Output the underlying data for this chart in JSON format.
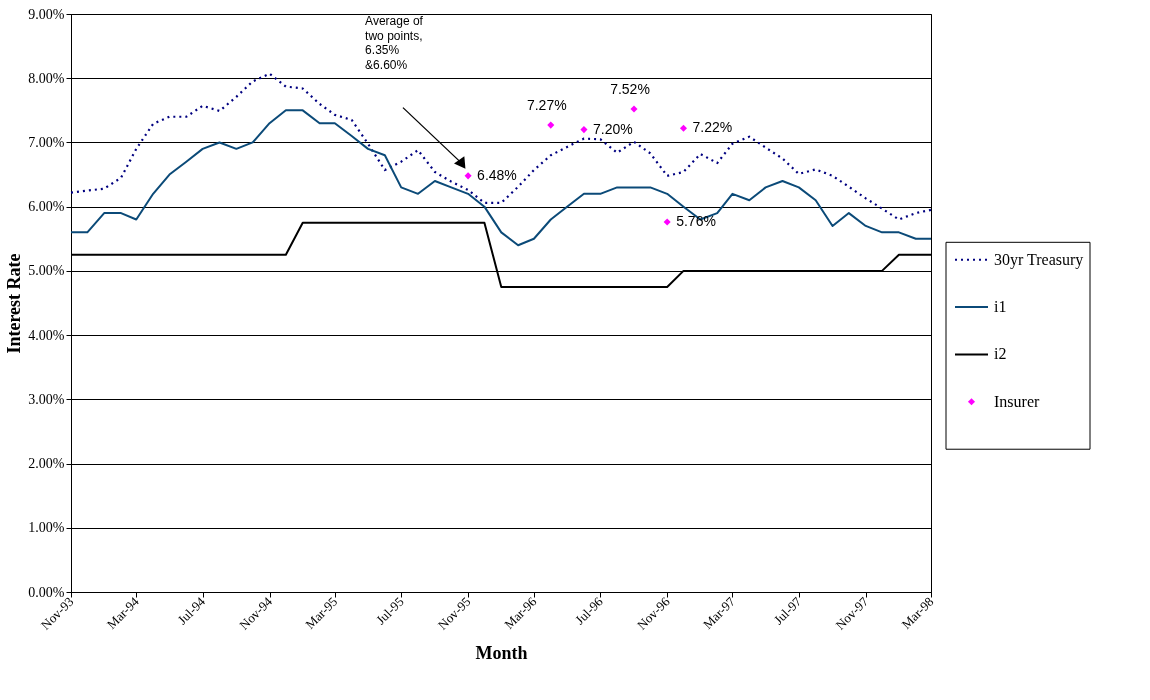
{
  "chart_data": {
    "type": "line",
    "x": [
      "1993-11",
      "1993-12",
      "1994-01",
      "1994-02",
      "1994-03",
      "1994-04",
      "1994-05",
      "1994-06",
      "1994-07",
      "1994-08",
      "1994-09",
      "1994-10",
      "1994-11",
      "1994-12",
      "1995-01",
      "1995-02",
      "1995-03",
      "1995-04",
      "1995-05",
      "1995-06",
      "1995-07",
      "1995-08",
      "1995-09",
      "1995-10",
      "1995-11",
      "1995-12",
      "1996-01",
      "1996-02",
      "1996-03",
      "1996-04",
      "1996-05",
      "1996-06",
      "1996-07",
      "1996-08",
      "1996-09",
      "1996-10",
      "1996-11",
      "1996-12",
      "1997-01",
      "1997-02",
      "1997-03",
      "1997-04",
      "1997-05",
      "1997-06",
      "1997-07",
      "1997-08",
      "1997-09",
      "1997-10",
      "1997-11",
      "1997-12",
      "1998-01",
      "1998-02",
      "1998-03"
    ],
    "series": [
      {
        "name": "30yr Treasury",
        "line_style": "dotted",
        "color": "#000080",
        "values": [
          6.22,
          6.25,
          6.28,
          6.45,
          6.9,
          7.29,
          7.4,
          7.4,
          7.57,
          7.49,
          7.71,
          7.95,
          8.07,
          7.87,
          7.84,
          7.6,
          7.43,
          7.35,
          6.98,
          6.57,
          6.7,
          6.88,
          6.54,
          6.39,
          6.26,
          6.06,
          6.06,
          6.31,
          6.57,
          6.8,
          6.93,
          7.06,
          7.05,
          6.84,
          7.01,
          6.83,
          6.48,
          6.54,
          6.82,
          6.68,
          6.98,
          7.09,
          6.92,
          6.75,
          6.51,
          6.58,
          6.48,
          6.31,
          6.13,
          5.97,
          5.8,
          5.9,
          5.95
        ]
      },
      {
        "name": "i1",
        "line_style": "solid",
        "color": "#0b4a78",
        "values": [
          5.6,
          5.6,
          5.9,
          5.9,
          5.8,
          6.2,
          6.5,
          6.7,
          6.9,
          7.0,
          6.9,
          7.0,
          7.3,
          7.5,
          7.5,
          7.3,
          7.3,
          7.1,
          6.9,
          6.8,
          6.3,
          6.2,
          6.4,
          6.3,
          6.2,
          6.0,
          5.6,
          5.4,
          5.5,
          5.8,
          6.0,
          6.2,
          6.2,
          6.3,
          6.3,
          6.3,
          6.2,
          6.0,
          5.8,
          5.9,
          6.2,
          6.1,
          6.3,
          6.4,
          6.3,
          6.1,
          5.7,
          5.9,
          5.7,
          5.6,
          5.6,
          5.5,
          5.5
        ]
      },
      {
        "name": "i2",
        "line_style": "solid",
        "color": "#000000",
        "values": [
          5.25,
          5.25,
          5.25,
          5.25,
          5.25,
          5.25,
          5.25,
          5.25,
          5.25,
          5.25,
          5.25,
          5.25,
          5.25,
          5.25,
          5.75,
          5.75,
          5.75,
          5.75,
          5.75,
          5.75,
          5.75,
          5.75,
          5.75,
          5.75,
          5.75,
          5.75,
          4.75,
          4.75,
          4.75,
          4.75,
          4.75,
          4.75,
          4.75,
          4.75,
          4.75,
          4.75,
          4.75,
          5.0,
          5.0,
          5.0,
          5.0,
          5.0,
          5.0,
          5.0,
          5.0,
          5.0,
          5.0,
          5.0,
          5.0,
          5.0,
          5.25,
          5.25,
          5.25
        ]
      },
      {
        "name": "Insurer",
        "type": "scatter",
        "marker": "diamond",
        "color": "#ff00ff",
        "x": [
          "1995-11",
          "1996-04",
          "1996-06",
          "1996-09",
          "1996-11",
          "1996-12"
        ],
        "values": [
          6.48,
          7.27,
          7.2,
          7.52,
          5.76,
          7.22
        ],
        "value_labels": [
          "6.48%",
          "7.27%",
          "7.20%",
          "7.52%",
          "5.76%",
          "7.22%"
        ]
      }
    ],
    "xlabel": "Month",
    "ylabel": "Interest Rate",
    "xlim": [
      "1993-11",
      "1998-03"
    ],
    "xticks": [
      {
        "value": "1993-11",
        "label": "Nov-93"
      },
      {
        "value": "1994-03",
        "label": "Mar-94"
      },
      {
        "value": "1994-07",
        "label": "Jul-94"
      },
      {
        "value": "1994-11",
        "label": "Nov-94"
      },
      {
        "value": "1995-03",
        "label": "Mar-95"
      },
      {
        "value": "1995-07",
        "label": "Jul-95"
      },
      {
        "value": "1995-11",
        "label": "Nov-95"
      },
      {
        "value": "1996-03",
        "label": "Mar-96"
      },
      {
        "value": "1996-07",
        "label": "Jul-96"
      },
      {
        "value": "1996-11",
        "label": "Nov-96"
      },
      {
        "value": "1997-03",
        "label": "Mar-97"
      },
      {
        "value": "1997-07",
        "label": "Jul-97"
      },
      {
        "value": "1997-11",
        "label": "Nov-97"
      },
      {
        "value": "1998-03",
        "label": "Mar-98"
      }
    ],
    "ylim": [
      0,
      9
    ],
    "yticks": [
      {
        "value": 0,
        "label": "0.00%"
      },
      {
        "value": 1,
        "label": "1.00%"
      },
      {
        "value": 2,
        "label": "2.00%"
      },
      {
        "value": 3,
        "label": "3.00%"
      },
      {
        "value": 4,
        "label": "4.00%"
      },
      {
        "value": 5,
        "label": "5.00%"
      },
      {
        "value": 6,
        "label": "6.00%"
      },
      {
        "value": 7,
        "label": "7.00%"
      },
      {
        "value": 8,
        "label": "8.00%"
      },
      {
        "value": 9,
        "label": "9.00%"
      }
    ],
    "grid": "y",
    "legend": "right",
    "annotations": [
      "Average of\ntwo points,\n6.35%\n&6.60%"
    ]
  }
}
